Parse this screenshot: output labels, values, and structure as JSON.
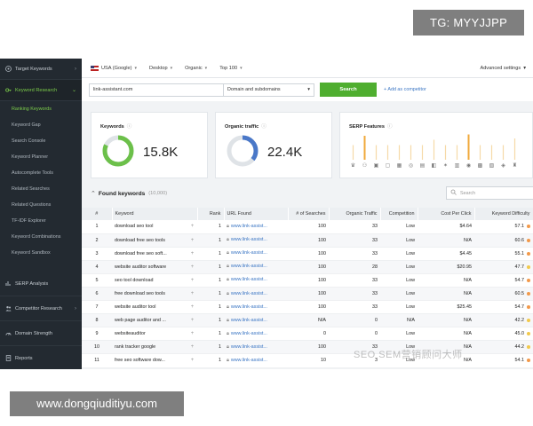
{
  "watermarks": {
    "top": "TG: MYYJJPP",
    "bottom": "www.dongqiuditiyu.com",
    "middle": "SEO SEM营销顾问大师"
  },
  "sidebar": {
    "groups": [
      {
        "label": "Target Keywords"
      },
      {
        "label": "Keyword Research"
      }
    ],
    "items": [
      "Ranking Keywords",
      "Keyword Gap",
      "Search Console",
      "Keyword Planner",
      "Autocomplete Tools",
      "Related Searches",
      "Related Questions",
      "TF-IDF Explorer",
      "Keyword Combinations",
      "Keyword Sandbox"
    ],
    "bottom_groups": [
      "SERP Analysis",
      "Competitor Research",
      "Domain Strength",
      "Reports"
    ]
  },
  "topbar": {
    "country": "USA (Google)",
    "device": "Desktop",
    "type": "Organic",
    "top": "Top 100",
    "advanced": "Advanced settings"
  },
  "search": {
    "domain": "link-assistant.com",
    "scope": "Domain and subdomains",
    "button": "Search",
    "add_competitor": "+ Add as competitor"
  },
  "cards": {
    "keywords": {
      "title": "Keywords",
      "value": "15.8K",
      "ratio": 0.82
    },
    "traffic": {
      "title": "Organic traffic",
      "value": "22.4K",
      "ratio": 0.36
    },
    "serp": {
      "title": "SERP Features",
      "bars": [
        0.55,
        0.9,
        0.55,
        0.55,
        0.55,
        0.55,
        0.55,
        0.75,
        0.55,
        0.55,
        0.95,
        0.55,
        0.55,
        0.55,
        0.8
      ],
      "highlight": [
        1,
        10
      ],
      "icons": [
        "♛",
        "⚇",
        "▣",
        "▢",
        "▦",
        "◎",
        "▤",
        "◧",
        "✶",
        "▥",
        "◉",
        "▩",
        "▧",
        "◈",
        "♜"
      ]
    }
  },
  "found": {
    "title": "Found keywords",
    "count": "(10,000)",
    "search_placeholder": "Search"
  },
  "table": {
    "headers": [
      "#",
      "Keyword",
      "Rank",
      "URL Found",
      "# of Searches",
      "Organic Traffic",
      "Competition",
      "Cost Per Click",
      "Keyword Difficulty"
    ],
    "rows": [
      [
        "1",
        "download seo tool",
        "1",
        "www.link-assist...",
        "100",
        "33",
        "Low",
        "$4.64",
        "57.1"
      ],
      [
        "2",
        "download free seo tools",
        "1",
        "www.link-assist...",
        "100",
        "33",
        "Low",
        "N/A",
        "60.6"
      ],
      [
        "3",
        "download free seo soft...",
        "1",
        "www.link-assist...",
        "100",
        "33",
        "Low",
        "$4.45",
        "55.1"
      ],
      [
        "4",
        "website auditor software",
        "1",
        "www.link-assist...",
        "100",
        "28",
        "Low",
        "$20.95",
        "47.7"
      ],
      [
        "5",
        "seo tool download",
        "1",
        "www.link-assist...",
        "100",
        "33",
        "Low",
        "N/A",
        "54.7"
      ],
      [
        "6",
        "free download seo tools",
        "1",
        "www.link-assist...",
        "100",
        "33",
        "Low",
        "N/A",
        "60.5"
      ],
      [
        "7",
        "website auditor tool",
        "1",
        "www.link-assist...",
        "100",
        "33",
        "Low",
        "$25.45",
        "54.7"
      ],
      [
        "8",
        "web page auditor and ...",
        "1",
        "www.link-assist...",
        "N/A",
        "0",
        "N/A",
        "N/A",
        "42.2"
      ],
      [
        "9",
        "websiteauditor",
        "1",
        "www.link-assist...",
        "0",
        "0",
        "Low",
        "N/A",
        "45.0"
      ],
      [
        "10",
        "rank tracker google",
        "1",
        "www.link-assist...",
        "100",
        "33",
        "Low",
        "N/A",
        "44.2"
      ],
      [
        "11",
        "free seo software dow...",
        "1",
        "www.link-assist...",
        "10",
        "3",
        "Low",
        "N/A",
        "54.1"
      ]
    ]
  },
  "colors": {
    "sidebar_bg": "#232a31",
    "accent_green": "#4fae2f",
    "donut_green": "#6cc04a",
    "donut_blue": "#4a78c8",
    "serp_orange": "#f0a93b",
    "kd_easy": "#f2c94c",
    "kd_mid": "#f2994a"
  }
}
